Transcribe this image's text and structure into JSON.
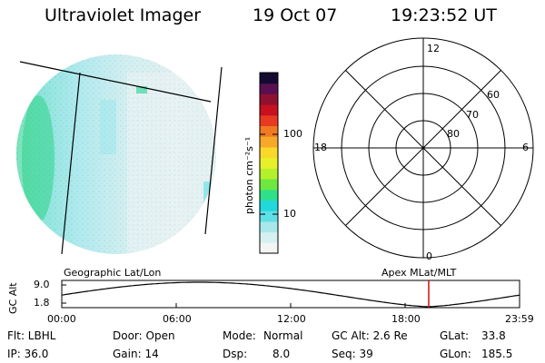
{
  "header": {
    "instrument": "Ultraviolet Imager",
    "date": "19 Oct 07",
    "time": "19:23:52 UT"
  },
  "colorbar": {
    "unit_label": "photon cm⁻²s⁻¹",
    "ticks": [
      "100",
      "10"
    ],
    "scale": "log",
    "colors": [
      "#f4f4f4",
      "#d6f0f0",
      "#a8e8ea",
      "#5ee0e6",
      "#22d8dc",
      "#2ee08a",
      "#6ee83e",
      "#b4f02c",
      "#e8f02a",
      "#f8d828",
      "#f8a828",
      "#f07a22",
      "#e83a22",
      "#c81020",
      "#901030",
      "#5a1050",
      "#140a30"
    ]
  },
  "left_panel": {
    "label": "Geographic Lat/Lon",
    "image": "auroral-uv-disk-view"
  },
  "polar_plot": {
    "label": "Apex MLat/MLT",
    "mlt_labels": {
      "top": "12",
      "bottom": "0",
      "left": "18",
      "right": "6"
    },
    "lat_labels": [
      "60",
      "70",
      "80"
    ]
  },
  "altitude_plot": {
    "ylabel": "GC Alt",
    "yticks": [
      "9.0",
      "1.8"
    ],
    "xticks": [
      "00:00",
      "06:00",
      "12:00",
      "18:00",
      "23:59"
    ],
    "marker_color": "#cc0000"
  },
  "info": {
    "row1": {
      "flt": "Flt: LBHL",
      "door": "Door: Open",
      "mode_label": "Mode:",
      "mode_value": "Normal",
      "gcalt": "GC Alt: 2.6 Re",
      "glat_label": "GLat:",
      "glat_value": "33.8"
    },
    "row2": {
      "ip": "IP: 36.0",
      "gain": "Gain: 14",
      "dsp_label": "Dsp:",
      "dsp_value": "8.0",
      "seq": "Seq: 39",
      "glon_label": "GLon:",
      "glon_value": "185.5"
    }
  }
}
